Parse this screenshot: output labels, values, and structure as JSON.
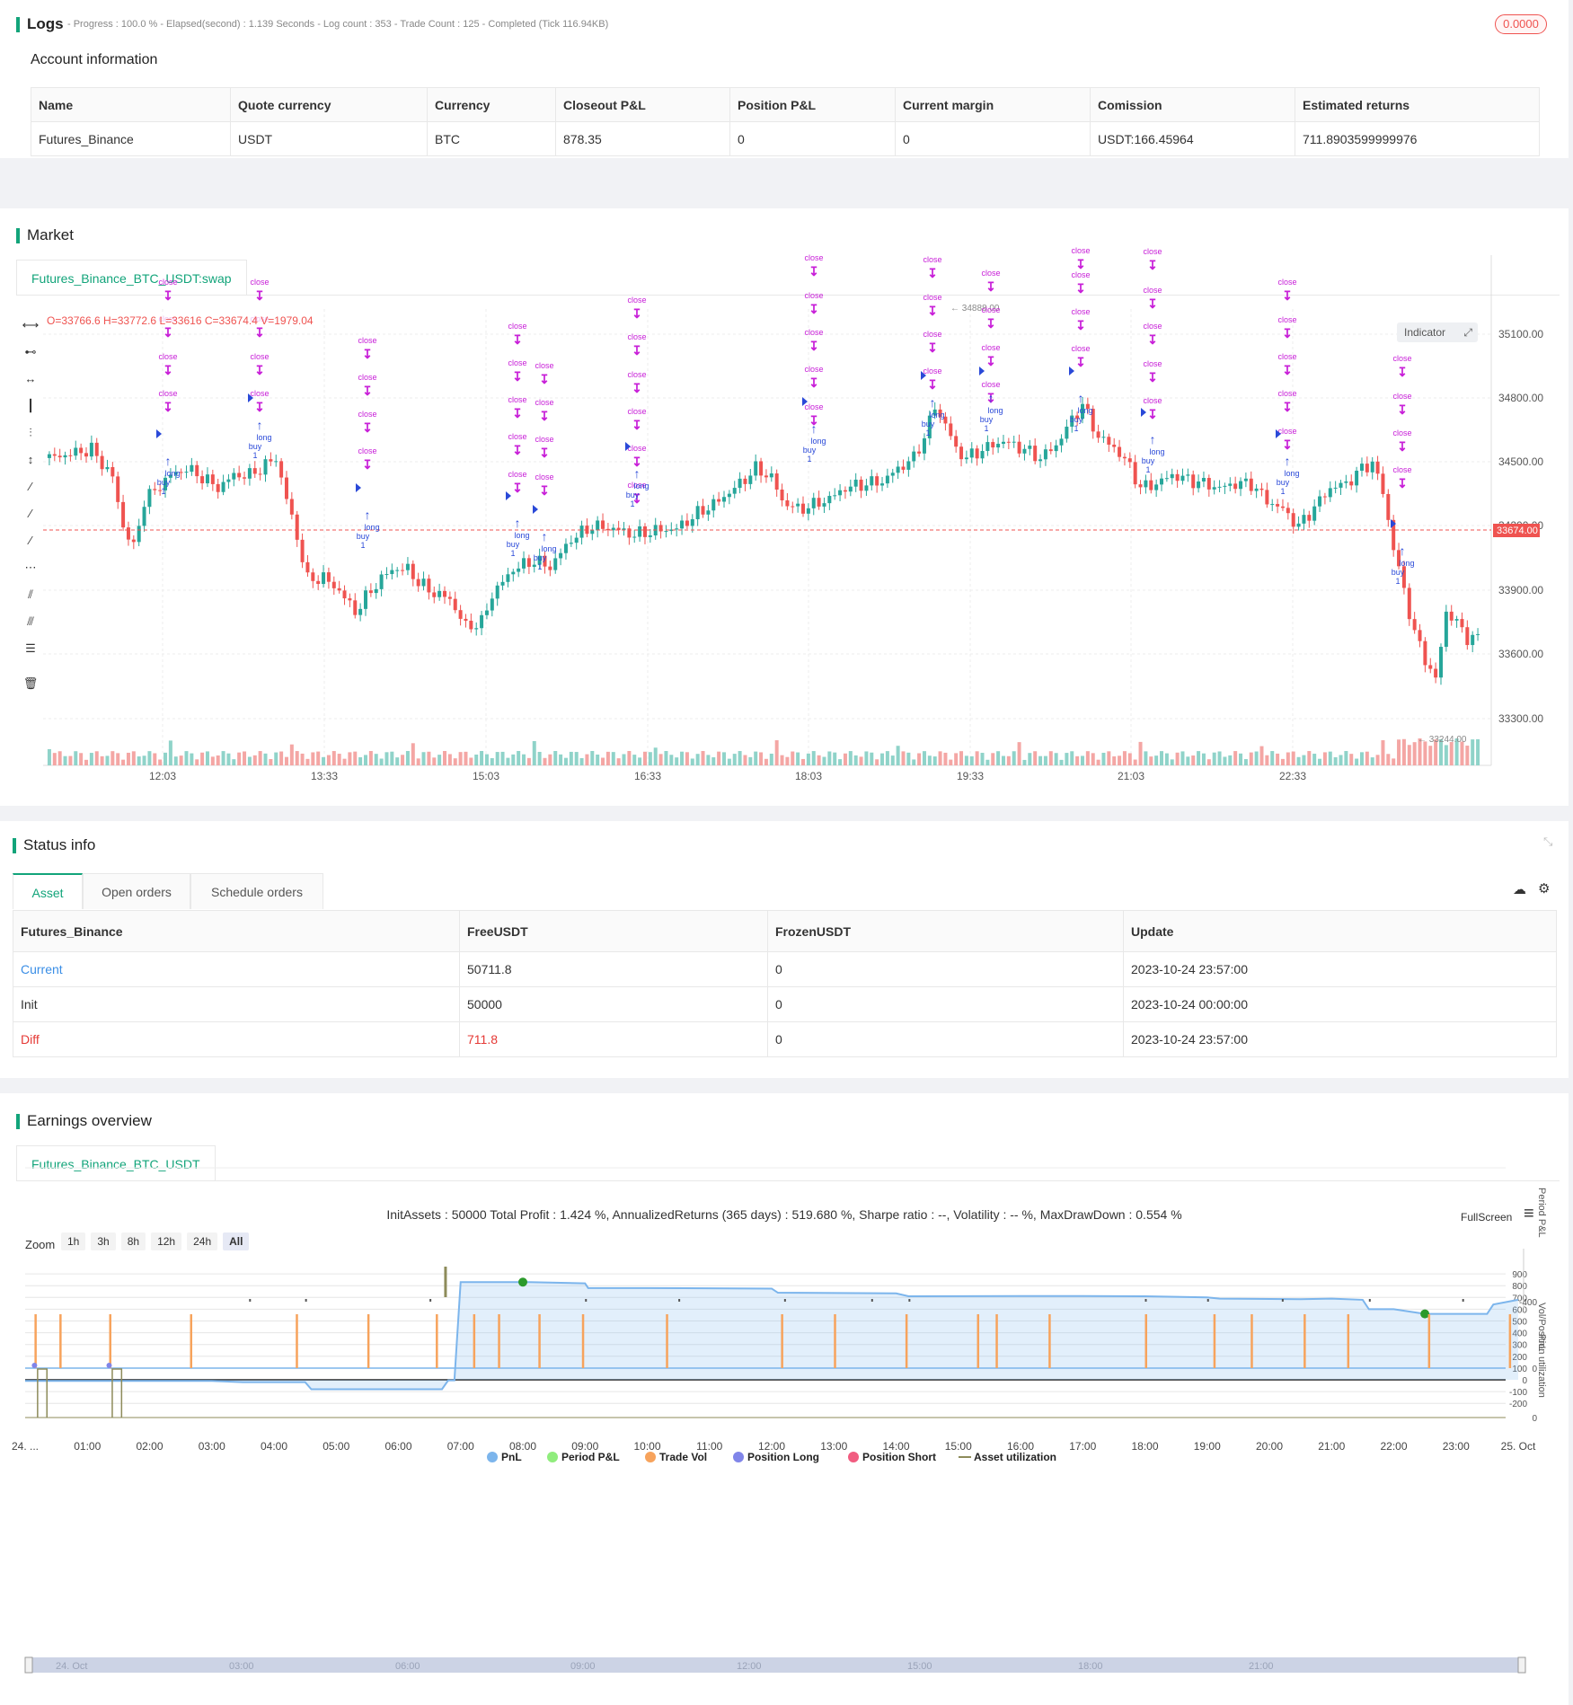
{
  "logs": {
    "title": "Logs",
    "status": "- Progress : 100.0 % - Elapsed(second) : 1.139 Seconds - Log count : 353 - Trade Count : 125 - Completed (Tick 116.94KB)",
    "badge": "0.0000"
  },
  "account": {
    "title": "Account information",
    "headers": [
      "Name",
      "Quote currency",
      "Currency",
      "Closeout P&L",
      "Position P&L",
      "Current margin",
      "Comission",
      "Estimated returns"
    ],
    "row": [
      "Futures_Binance",
      "USDT",
      "BTC",
      "878.35",
      "0",
      "0",
      "USDT:166.45964",
      "711.8903599999976"
    ]
  },
  "market": {
    "title": "Market",
    "tab": "Futures_Binance_BTC_USDT:swap",
    "ohlc": "O=33766.6 H=33772.6 L=33616 C=33674.4 V=1979.04",
    "indicator_btn": "Indicator",
    "price_ticks": [
      "35100.00",
      "34800.00",
      "34500.00",
      "34200.00",
      "33900.00",
      "33600.00",
      "33300.00"
    ],
    "time_ticks": [
      "12:03",
      "13:33",
      "15:03",
      "16:33",
      "18:03",
      "19:33",
      "21:03",
      "22:33"
    ],
    "last_price": "33674.00",
    "high_label": "34888.00",
    "low_label": "33244.00",
    "marker_close": "close",
    "marker_long": "long",
    "marker_buy": "buy",
    "marker_one": "1"
  },
  "status": {
    "title": "Status info",
    "tabs": [
      "Asset",
      "Open orders",
      "Schedule orders"
    ],
    "headers": [
      "Futures_Binance",
      "FreeUSDT",
      "FrozenUSDT",
      "Update"
    ],
    "rows": [
      [
        "Current",
        "50711.8",
        "0",
        "2023-10-24 23:57:00"
      ],
      [
        "Init",
        "50000",
        "0",
        "2023-10-24 00:00:00"
      ],
      [
        "Diff",
        "711.8",
        "0",
        "2023-10-24 23:57:00"
      ]
    ]
  },
  "earnings": {
    "title": "Earnings overview",
    "tab": "Futures_Binance_BTC_USDT",
    "summary": "InitAssets : 50000 Total Profit : 1.424 %, AnnualizedReturns (365 days) : 519.680 %, Sharpe ratio : --, Volatility : -- %, MaxDrawDown : 0.554 %",
    "fullscreen": "FullScreen",
    "zoom_label": "Zoom",
    "zoom_options": [
      "1h",
      "3h",
      "8h",
      "12h",
      "24h",
      "All"
    ],
    "pnl_ticks": [
      "900",
      "800",
      "700",
      "600",
      "500",
      "400",
      "300",
      "200",
      "100",
      "0",
      "-100",
      "-200"
    ],
    "axis_titles": [
      "PnL",
      "Period P&L",
      "Vol/Position",
      "utilization"
    ],
    "period_tick": "-400",
    "vol_tick": "0",
    "util_tick": "0",
    "time_ticks": [
      "24. ...",
      "01:00",
      "02:00",
      "03:00",
      "04:00",
      "05:00",
      "06:00",
      "07:00",
      "08:00",
      "09:00",
      "10:00",
      "11:00",
      "12:00",
      "13:00",
      "14:00",
      "15:00",
      "16:00",
      "17:00",
      "18:00",
      "19:00",
      "20:00",
      "21:00",
      "22:00",
      "23:00",
      "25. Oct"
    ],
    "legend": [
      "PnL",
      "Period P&L",
      "Trade Vol",
      "Position Long",
      "Position Short",
      "Asset utilization"
    ],
    "nav_ticks": [
      "24. Oct",
      "03:00",
      "06:00",
      "09:00",
      "12:00",
      "15:00",
      "18:00",
      "21:00"
    ],
    "colors": {
      "pnl": "#7cb5ec",
      "period": "#90ed7d",
      "vol": "#f7a35c",
      "long": "#8085e9",
      "short": "#f15c80",
      "util": "#8d8b5a"
    }
  },
  "colors": {
    "accent": "#12a47a",
    "up": "#26a69a",
    "down": "#ef5350",
    "marker": "#c820d8",
    "long": "#2a49d8"
  }
}
